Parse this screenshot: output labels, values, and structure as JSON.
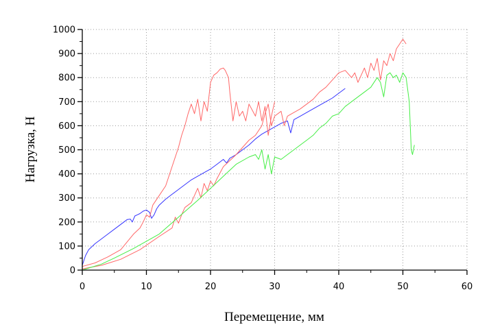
{
  "chart_data": {
    "type": "line",
    "xlabel": "Перемещение, мм",
    "ylabel": "Нагрузка, Н",
    "xlim": [
      0,
      60
    ],
    "ylim": [
      0,
      1000
    ],
    "x_ticks": [
      0,
      10,
      20,
      30,
      40,
      50,
      60
    ],
    "y_ticks": [
      0,
      100,
      200,
      300,
      400,
      500,
      600,
      700,
      800,
      900,
      1000
    ],
    "grid": true,
    "legend": "none",
    "series": [
      {
        "color": "#3333ff",
        "x": [
          0,
          0.5,
          1,
          2,
          3,
          4,
          5,
          6,
          7,
          7.5,
          7.8,
          8.2,
          8.6,
          9,
          9.5,
          10,
          10.5,
          10.8,
          11.2,
          11.6,
          12,
          13,
          14,
          15,
          16,
          17,
          18,
          19,
          20,
          21,
          22,
          22.5,
          23,
          24,
          25,
          26,
          27,
          28,
          29,
          30,
          31,
          32,
          32.5,
          33,
          34,
          35,
          36,
          37,
          38,
          39,
          40,
          41
        ],
        "values": [
          20,
          60,
          85,
          110,
          130,
          150,
          170,
          190,
          210,
          212,
          200,
          225,
          230,
          235,
          245,
          250,
          240,
          215,
          230,
          255,
          270,
          295,
          315,
          335,
          355,
          375,
          390,
          405,
          420,
          440,
          460,
          445,
          465,
          480,
          500,
          520,
          545,
          565,
          580,
          595,
          610,
          620,
          570,
          625,
          640,
          655,
          670,
          685,
          700,
          715,
          735,
          755
        ]
      },
      {
        "color": "#ff6666",
        "x": [
          0,
          2,
          4,
          6,
          8,
          9,
          9.5,
          10,
          10.5,
          11,
          12,
          13,
          14,
          15,
          15.5,
          16,
          16.5,
          17,
          17.5,
          18,
          18.5,
          19,
          19.5,
          20,
          20.5,
          21,
          21.5,
          22,
          22.3,
          22.8,
          23,
          23.5,
          24,
          24.5,
          25,
          25.5,
          26,
          27,
          27.5,
          28,
          28.5,
          29,
          29.5,
          30
        ],
        "values": [
          15,
          30,
          55,
          85,
          150,
          175,
          200,
          230,
          220,
          270,
          310,
          350,
          430,
          510,
          560,
          600,
          650,
          690,
          650,
          710,
          620,
          700,
          660,
          780,
          810,
          820,
          835,
          840,
          830,
          800,
          740,
          620,
          700,
          640,
          660,
          620,
          690,
          640,
          700,
          620,
          680,
          560,
          640,
          700
        ]
      },
      {
        "color": "#ff6666",
        "x": [
          0,
          3,
          6,
          9,
          12,
          14,
          14.5,
          15,
          15.5,
          16,
          17,
          18,
          18.5,
          19,
          19.5,
          20,
          20.5,
          21,
          22,
          24,
          26,
          27,
          28,
          28.5,
          29,
          29.5,
          30,
          31,
          31.5,
          32,
          33,
          34,
          35,
          36,
          37,
          38,
          39,
          40,
          41,
          42,
          42.5,
          43,
          44,
          44.5,
          45,
          45.5,
          46,
          46.5,
          47,
          47.5,
          48,
          48.5,
          49,
          49.5,
          50,
          50.5
        ],
        "values": [
          5,
          20,
          45,
          85,
          140,
          175,
          220,
          195,
          230,
          260,
          280,
          340,
          300,
          360,
          330,
          370,
          350,
          380,
          430,
          480,
          540,
          560,
          600,
          650,
          690,
          600,
          640,
          660,
          600,
          640,
          655,
          670,
          690,
          710,
          740,
          760,
          790,
          820,
          830,
          800,
          820,
          780,
          840,
          800,
          860,
          830,
          880,
          790,
          870,
          850,
          900,
          870,
          920,
          940,
          960,
          940
        ]
      },
      {
        "color": "#44ee44",
        "x": [
          0,
          3,
          5,
          8,
          10,
          12,
          15,
          18,
          20,
          22,
          24,
          26,
          27,
          27.5,
          28,
          28.5,
          29,
          29.5,
          30,
          31,
          32,
          33,
          34,
          35,
          36,
          37,
          38,
          39,
          40,
          41,
          42,
          43,
          44,
          45,
          45.5,
          46,
          46.5,
          47,
          47.5,
          48,
          48.5,
          49,
          49.5,
          50,
          50.5,
          51,
          51.3,
          51.5,
          51.8
        ],
        "values": [
          0,
          25,
          50,
          90,
          120,
          150,
          220,
          290,
          340,
          390,
          440,
          470,
          480,
          460,
          500,
          420,
          480,
          400,
          470,
          460,
          480,
          500,
          520,
          540,
          560,
          590,
          610,
          640,
          650,
          680,
          700,
          720,
          740,
          760,
          780,
          800,
          780,
          720,
          810,
          820,
          800,
          810,
          780,
          820,
          800,
          700,
          500,
          480,
          520
        ]
      }
    ]
  }
}
